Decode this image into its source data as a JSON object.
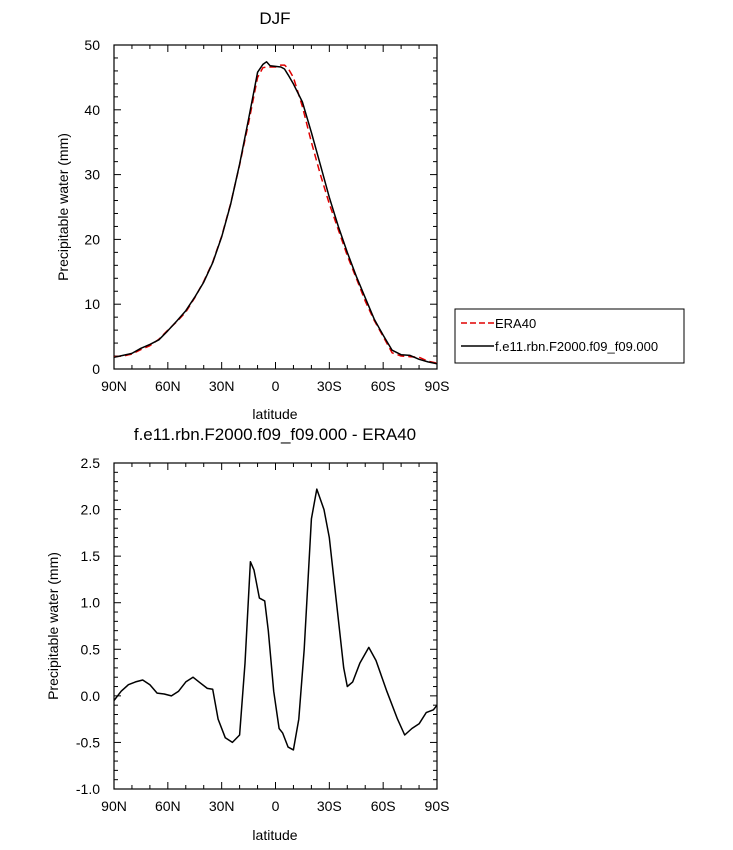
{
  "chart_data": [
    {
      "type": "line",
      "title": "DJF",
      "xlabel": "latitude",
      "ylabel": "Precipitable water (mm)",
      "ylim": [
        0,
        50
      ],
      "xlim": [
        90,
        -90
      ],
      "x_ticks": [
        90,
        60,
        30,
        0,
        -30,
        -60,
        -90
      ],
      "x_tick_labels": [
        "90N",
        "60N",
        "30N",
        "0",
        "30S",
        "60S",
        "90S"
      ],
      "y_ticks": [
        0,
        10,
        20,
        30,
        40,
        50
      ],
      "y_tick_labels": [
        "0",
        "10",
        "20",
        "30",
        "40",
        "50"
      ],
      "legend_position": "right",
      "series": [
        {
          "name": "ERA40",
          "color": "#e00000",
          "dash": "dashed",
          "x": [
            90,
            85,
            80,
            75,
            70,
            65,
            60,
            55,
            50,
            45,
            40,
            35,
            30,
            25,
            20,
            15,
            10,
            7,
            5,
            3,
            0,
            -3,
            -5,
            -7,
            -10,
            -15,
            -20,
            -25,
            -30,
            -35,
            -40,
            -45,
            -50,
            -55,
            -60,
            -65,
            -70,
            -75,
            -80,
            -85,
            -90
          ],
          "y": [
            1.9,
            2.0,
            2.3,
            3.0,
            3.6,
            4.6,
            6.0,
            7.3,
            8.8,
            11.0,
            13.5,
            16.5,
            20.5,
            25.5,
            31.5,
            38.0,
            45.0,
            46.5,
            46.6,
            46.6,
            46.6,
            46.9,
            46.9,
            46.4,
            45.0,
            40.5,
            35.0,
            30.0,
            25.5,
            21.5,
            17.5,
            14.0,
            10.5,
            7.5,
            5.0,
            2.5,
            2.0,
            1.9,
            1.8,
            1.2,
            0.9
          ]
        },
        {
          "name": "f.e11.rbn.F2000.f09_f09.000",
          "color": "#000000",
          "dash": "solid",
          "x": [
            90,
            85,
            80,
            75,
            70,
            65,
            60,
            55,
            50,
            45,
            40,
            35,
            30,
            25,
            20,
            15,
            10,
            7,
            5,
            3,
            0,
            -3,
            -5,
            -7,
            -10,
            -15,
            -20,
            -25,
            -30,
            -35,
            -40,
            -45,
            -50,
            -55,
            -60,
            -65,
            -70,
            -75,
            -80,
            -85,
            -90
          ],
          "y": [
            1.8,
            2.1,
            2.4,
            3.2,
            3.8,
            4.5,
            5.9,
            7.4,
            9.0,
            11.1,
            13.4,
            16.4,
            20.4,
            25.4,
            31.6,
            38.6,
            45.8,
            47.0,
            47.4,
            46.8,
            46.7,
            46.6,
            46.3,
            45.4,
            44.0,
            41.2,
            36.5,
            31.5,
            26.5,
            22.0,
            18.0,
            14.3,
            11.0,
            7.7,
            5.2,
            2.9,
            2.2,
            2.1,
            1.5,
            1.1,
            0.8
          ]
        }
      ]
    },
    {
      "type": "line",
      "title": "f.e11.rbn.F2000.f09_f09.000 - ERA40",
      "xlabel": "latitude",
      "ylabel": "Precipitable water (mm)",
      "ylim": [
        -1.0,
        2.5
      ],
      "xlim": [
        90,
        -90
      ],
      "x_ticks": [
        90,
        60,
        30,
        0,
        -30,
        -60,
        -90
      ],
      "x_tick_labels": [
        "90N",
        "60N",
        "30N",
        "0",
        "30S",
        "60S",
        "90S"
      ],
      "y_ticks": [
        -1.0,
        -0.5,
        0.0,
        0.5,
        1.0,
        1.5,
        2.0,
        2.5
      ],
      "y_tick_labels": [
        "-1.0",
        "-0.5",
        "0.0",
        "0.5",
        "1.0",
        "1.5",
        "2.0",
        "2.5"
      ],
      "series": [
        {
          "color": "#000000",
          "dash": "solid",
          "x": [
            90,
            86,
            82,
            78,
            74,
            70,
            66,
            62,
            58,
            54,
            50,
            46,
            42,
            38,
            35,
            32,
            28,
            24,
            20,
            17,
            14,
            12,
            9,
            6,
            4,
            1,
            -2,
            -4,
            -7,
            -10,
            -13,
            -16,
            -20,
            -23,
            -27,
            -30,
            -34,
            -38,
            -40,
            -43,
            -47,
            -52,
            -56,
            -62,
            -68,
            -72,
            -76,
            -80,
            -84,
            -88,
            -90
          ],
          "y": [
            -0.05,
            0.05,
            0.12,
            0.15,
            0.17,
            0.12,
            0.03,
            0.02,
            0.0,
            0.05,
            0.15,
            0.2,
            0.14,
            0.08,
            0.07,
            -0.25,
            -0.45,
            -0.5,
            -0.42,
            0.35,
            1.44,
            1.35,
            1.05,
            1.02,
            0.7,
            0.05,
            -0.35,
            -0.4,
            -0.55,
            -0.58,
            -0.25,
            0.5,
            1.9,
            2.22,
            2.0,
            1.7,
            1.0,
            0.3,
            0.1,
            0.15,
            0.35,
            0.52,
            0.38,
            0.05,
            -0.25,
            -0.42,
            -0.35,
            -0.3,
            -0.18,
            -0.15,
            -0.1
          ]
        }
      ]
    }
  ]
}
